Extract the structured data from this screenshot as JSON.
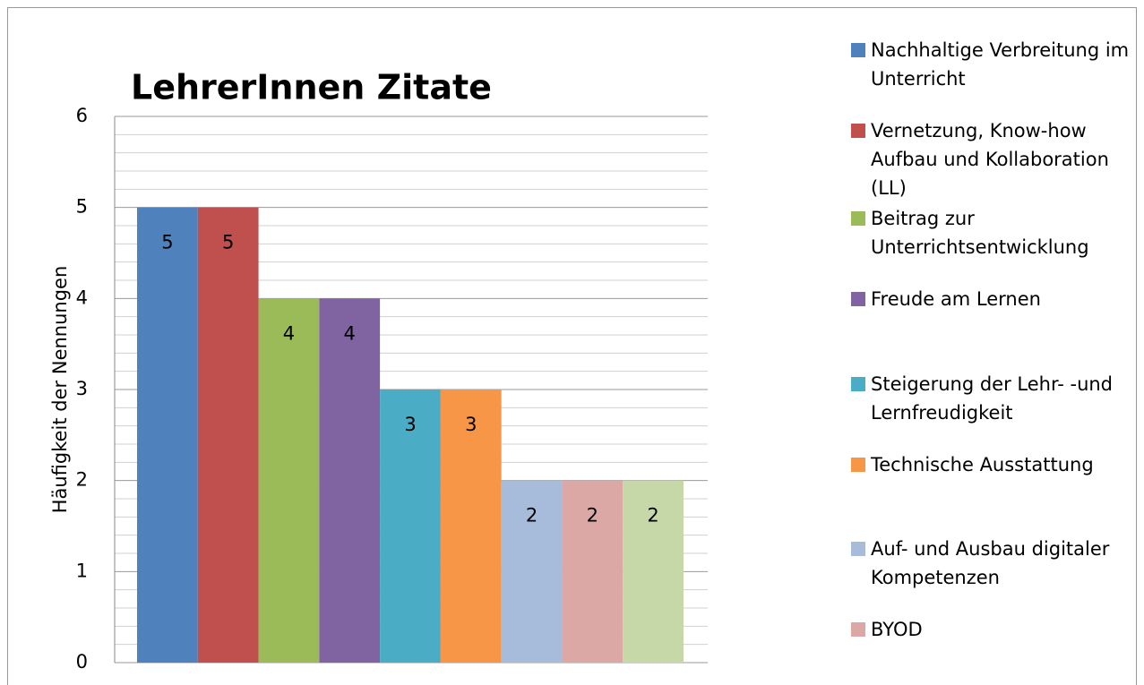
{
  "chart_data": {
    "type": "bar",
    "title": "LehrerInnen Zitate",
    "y_label": "Häufigkeit der Nennungen",
    "series": [
      {
        "name": "Nachhaltige Verbreitung im Unterricht",
        "color": "#4f81bd",
        "values": [
          5
        ]
      },
      {
        "name": "Vernetzung, Know-how Aufbau und Kollaboration (LL)",
        "color": "#c0504d",
        "values": [
          5
        ]
      },
      {
        "name": "Beitrag zur Unterrichtsentwicklung",
        "color": "#9bbb59",
        "values": [
          4
        ]
      },
      {
        "name": "Freude am Lernen",
        "color": "#8064a2",
        "values": [
          4
        ]
      },
      {
        "name": "Steigerung der Lehr- -und Lernfreudigkeit",
        "color": "#4bacc6",
        "values": [
          3
        ]
      },
      {
        "name": "Technische Ausstattung",
        "color": "#f79646",
        "values": [
          3
        ]
      },
      {
        "name": "Auf- und Ausbau digitaler Kompetenzen",
        "color": "#a7bbdb",
        "values": [
          2
        ]
      },
      {
        "name": "BYOD",
        "color": "#dca8a6",
        "values": [
          2
        ]
      },
      {
        "color": "#c6d8a8",
        "values": [
          2
        ]
      }
    ],
    "ylim": [
      0,
      6
    ],
    "yticks": [
      0,
      1,
      2,
      3,
      4,
      5,
      6
    ],
    "grid": true,
    "minor_grid_divisions": 5,
    "legend": "right"
  }
}
